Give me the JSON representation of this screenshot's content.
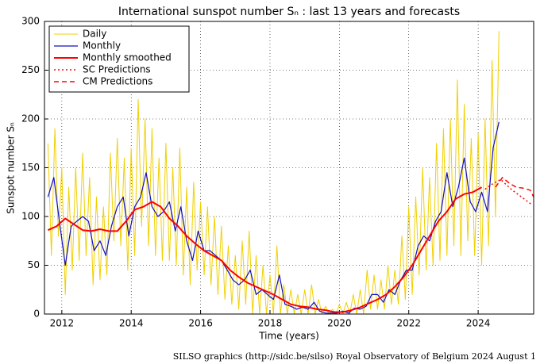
{
  "chart_data": {
    "type": "line",
    "title": "International sunspot number Sₙ : last 13 years and forecasts",
    "xlabel": "Time (years)",
    "ylabel": "Sunspot number Sₙ",
    "footer": "SILSO graphics (http://sidc.be/silso)  Royal Observatory of Belgium  2024 August 1",
    "xlim": [
      2011.5,
      2025.6
    ],
    "ylim": [
      0,
      300
    ],
    "xticks": [
      2012,
      2014,
      2016,
      2018,
      2020,
      2022,
      2024
    ],
    "yticks": [
      0,
      50,
      100,
      150,
      200,
      250,
      300
    ],
    "grid": true,
    "legend": "upper left",
    "series": [
      {
        "name": "Daily",
        "color": "#f0d000",
        "style": "solid",
        "width": 1,
        "x": [
          2011.6,
          2011.7,
          2011.8,
          2011.9,
          2012.0,
          2012.1,
          2012.2,
          2012.3,
          2012.4,
          2012.5,
          2012.6,
          2012.7,
          2012.8,
          2012.9,
          2013.0,
          2013.1,
          2013.2,
          2013.3,
          2013.4,
          2013.5,
          2013.6,
          2013.7,
          2013.8,
          2013.9,
          2014.0,
          2014.1,
          2014.2,
          2014.3,
          2014.4,
          2014.5,
          2014.6,
          2014.7,
          2014.8,
          2014.9,
          2015.0,
          2015.1,
          2015.2,
          2015.3,
          2015.4,
          2015.5,
          2015.6,
          2015.7,
          2015.8,
          2015.9,
          2016.0,
          2016.1,
          2016.2,
          2016.3,
          2016.4,
          2016.5,
          2016.6,
          2016.7,
          2016.8,
          2016.9,
          2017.0,
          2017.1,
          2017.2,
          2017.3,
          2017.4,
          2017.5,
          2017.6,
          2017.7,
          2017.8,
          2017.9,
          2018.0,
          2018.1,
          2018.2,
          2018.3,
          2018.4,
          2018.5,
          2018.6,
          2018.7,
          2018.8,
          2018.9,
          2019.0,
          2019.1,
          2019.2,
          2019.3,
          2019.4,
          2019.5,
          2019.6,
          2019.7,
          2019.8,
          2019.9,
          2020.0,
          2020.1,
          2020.2,
          2020.3,
          2020.4,
          2020.5,
          2020.6,
          2020.7,
          2020.8,
          2020.9,
          2021.0,
          2021.1,
          2021.2,
          2021.3,
          2021.4,
          2021.5,
          2021.6,
          2021.7,
          2021.8,
          2021.9,
          2022.0,
          2022.1,
          2022.2,
          2022.3,
          2022.4,
          2022.5,
          2022.6,
          2022.7,
          2022.8,
          2022.9,
          2023.0,
          2023.1,
          2023.2,
          2023.3,
          2023.4,
          2023.5,
          2023.6,
          2023.7,
          2023.8,
          2023.9,
          2024.0,
          2024.1,
          2024.2,
          2024.3,
          2024.4,
          2024.5,
          2024.6
        ],
        "values": [
          175,
          60,
          190,
          80,
          150,
          20,
          130,
          45,
          150,
          55,
          165,
          60,
          140,
          30,
          120,
          35,
          110,
          40,
          165,
          75,
          180,
          70,
          160,
          45,
          170,
          60,
          220,
          90,
          200,
          70,
          190,
          60,
          160,
          55,
          175,
          55,
          150,
          50,
          170,
          40,
          130,
          30,
          135,
          45,
          115,
          40,
          110,
          30,
          100,
          20,
          90,
          15,
          70,
          10,
          60,
          5,
          75,
          10,
          85,
          0,
          60,
          0,
          50,
          0,
          40,
          0,
          70,
          0,
          30,
          0,
          25,
          0,
          20,
          0,
          25,
          0,
          30,
          0,
          15,
          0,
          8,
          0,
          5,
          0,
          10,
          0,
          12,
          0,
          20,
          0,
          25,
          0,
          45,
          5,
          40,
          5,
          35,
          5,
          50,
          10,
          45,
          10,
          80,
          15,
          110,
          20,
          120,
          40,
          150,
          45,
          140,
          50,
          175,
          55,
          190,
          60,
          200,
          70,
          240,
          60,
          215,
          75,
          180,
          60,
          185,
          50,
          200,
          70,
          260,
          100,
          290
        ]
      },
      {
        "name": "Monthly",
        "color": "#1010c0",
        "style": "solid",
        "width": 1.2,
        "x": [
          2011.6,
          2011.77,
          2011.93,
          2012.1,
          2012.27,
          2012.43,
          2012.6,
          2012.77,
          2012.93,
          2013.1,
          2013.27,
          2013.43,
          2013.6,
          2013.77,
          2013.93,
          2014.1,
          2014.27,
          2014.43,
          2014.6,
          2014.77,
          2014.93,
          2015.1,
          2015.27,
          2015.43,
          2015.6,
          2015.77,
          2015.93,
          2016.1,
          2016.27,
          2016.43,
          2016.6,
          2016.77,
          2016.93,
          2017.1,
          2017.27,
          2017.43,
          2017.6,
          2017.77,
          2017.93,
          2018.1,
          2018.27,
          2018.43,
          2018.6,
          2018.77,
          2018.93,
          2019.1,
          2019.27,
          2019.43,
          2019.6,
          2019.77,
          2019.93,
          2020.1,
          2020.27,
          2020.43,
          2020.6,
          2020.77,
          2020.93,
          2021.1,
          2021.27,
          2021.43,
          2021.6,
          2021.77,
          2021.93,
          2022.1,
          2022.27,
          2022.43,
          2022.6,
          2022.77,
          2022.93,
          2023.1,
          2023.27,
          2023.43,
          2023.6,
          2023.77,
          2023.93,
          2024.1,
          2024.27,
          2024.43,
          2024.6
        ],
        "values": [
          120,
          140,
          95,
          50,
          90,
          95,
          100,
          95,
          65,
          75,
          60,
          90,
          110,
          120,
          80,
          110,
          120,
          145,
          110,
          100,
          105,
          115,
          85,
          110,
          75,
          55,
          85,
          65,
          65,
          60,
          55,
          45,
          35,
          30,
          35,
          45,
          20,
          25,
          20,
          15,
          40,
          10,
          8,
          5,
          7,
          5,
          12,
          3,
          1,
          1,
          1,
          3,
          1,
          6,
          5,
          8,
          20,
          20,
          12,
          25,
          20,
          35,
          45,
          45,
          70,
          80,
          75,
          95,
          105,
          145,
          110,
          130,
          160,
          115,
          105,
          125,
          105,
          170,
          197
        ]
      },
      {
        "name": "Monthly smoothed",
        "color": "#ff0000",
        "style": "solid",
        "width": 2,
        "x": [
          2011.6,
          2011.85,
          2012.1,
          2012.35,
          2012.6,
          2012.85,
          2013.1,
          2013.35,
          2013.6,
          2013.85,
          2014.1,
          2014.35,
          2014.6,
          2014.85,
          2015.1,
          2015.35,
          2015.6,
          2015.85,
          2016.1,
          2016.35,
          2016.6,
          2016.85,
          2017.1,
          2017.35,
          2017.6,
          2017.85,
          2018.1,
          2018.35,
          2018.6,
          2018.85,
          2019.1,
          2019.35,
          2019.6,
          2019.85,
          2020.1,
          2020.35,
          2020.6,
          2020.85,
          2021.1,
          2021.35,
          2021.6,
          2021.85,
          2022.1,
          2022.35,
          2022.6,
          2022.85,
          2023.1,
          2023.35,
          2023.6,
          2023.85,
          2024.1
        ],
        "values": [
          86,
          90,
          98,
          92,
          86,
          85,
          87,
          85,
          85,
          95,
          107,
          110,
          115,
          110,
          98,
          90,
          80,
          72,
          65,
          60,
          55,
          45,
          38,
          32,
          28,
          24,
          20,
          15,
          10,
          8,
          7,
          5,
          4,
          2,
          2,
          4,
          7,
          11,
          15,
          20,
          28,
          38,
          50,
          65,
          80,
          95,
          105,
          118,
          123,
          125,
          130
        ]
      },
      {
        "name": "SC Predictions",
        "color": "#ff0000",
        "style": "dotted",
        "width": 1.5,
        "x": [
          2024.2,
          2024.35,
          2024.5,
          2024.65,
          2024.8,
          2024.95,
          2025.1,
          2025.25,
          2025.4,
          2025.55
        ],
        "values": [
          128,
          132,
          135,
          138,
          133,
          128,
          124,
          120,
          116,
          112
        ]
      },
      {
        "name": "CM Predictions",
        "color": "#ff0000",
        "style": "dashed",
        "width": 1.5,
        "x": [
          2024.5,
          2024.7,
          2024.9,
          2025.1,
          2025.3,
          2025.5,
          2025.6
        ],
        "values": [
          130,
          140,
          134,
          130,
          129,
          127,
          120
        ]
      }
    ]
  }
}
